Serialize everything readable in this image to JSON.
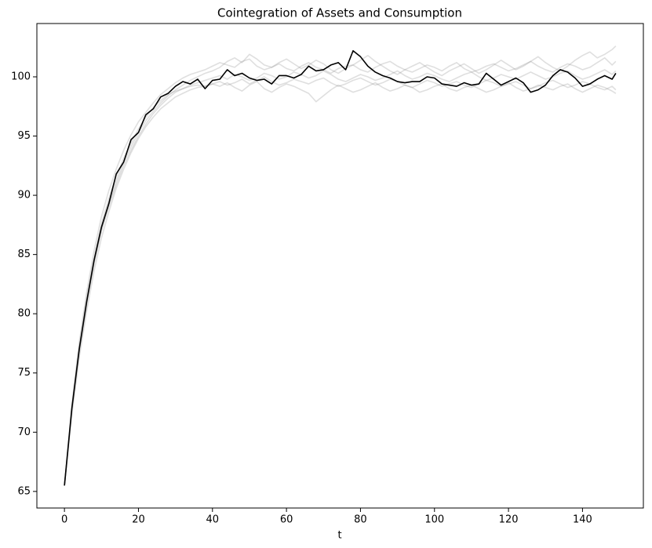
{
  "chart_data": {
    "type": "line",
    "title": "Cointegration of Assets and Consumption",
    "x_label": "t",
    "x": [
      0,
      2,
      4,
      6,
      8,
      10,
      12,
      14,
      16,
      18,
      20,
      22,
      24,
      26,
      28,
      30,
      32,
      34,
      36,
      38,
      40,
      42,
      44,
      46,
      48,
      50,
      52,
      54,
      56,
      58,
      60,
      62,
      64,
      66,
      68,
      70,
      72,
      74,
      76,
      78,
      80,
      82,
      84,
      86,
      88,
      90,
      92,
      94,
      96,
      98,
      100,
      102,
      104,
      106,
      108,
      110,
      112,
      114,
      116,
      118,
      120,
      122,
      124,
      126,
      128,
      130,
      132,
      134,
      136,
      138,
      140,
      142,
      144,
      146,
      148,
      149
    ],
    "xlim": [
      -7.45,
      156.45
    ],
    "xticks": [
      0,
      20,
      40,
      60,
      80,
      100,
      120,
      140
    ],
    "ylim": [
      63.6,
      104.5
    ],
    "yticks": [
      65,
      70,
      75,
      80,
      85,
      90,
      95,
      100
    ],
    "series": [
      {
        "color": "#808080",
        "alpha": 0.25,
        "values": [
          65.5,
          72.3,
          77.6,
          81.8,
          85.3,
          88.2,
          90.4,
          92.2,
          93.8,
          95.1,
          96.2,
          97.0,
          97.8,
          98.5,
          99.0,
          99.5,
          99.9,
          100.2,
          100.4,
          100.6,
          100.9,
          101.2,
          101.0,
          100.8,
          101.3,
          101.5,
          100.9,
          100.6,
          100.8,
          101.1,
          100.7,
          100.5,
          100.9,
          101.2,
          100.8,
          100.6,
          100.3,
          100.7,
          100.9,
          101.0,
          100.6,
          100.4,
          100.8,
          101.1,
          101.3,
          100.9,
          100.6,
          100.4,
          100.7,
          101.0,
          100.8,
          100.5,
          100.9,
          101.2,
          100.7,
          100.4,
          100.6,
          100.9,
          101.1,
          100.8,
          100.5,
          100.7,
          101.0,
          101.3,
          100.9,
          100.6,
          100.4,
          100.8,
          101.1,
          100.9,
          100.6,
          100.8,
          101.2,
          101.6,
          101.0,
          101.3
        ]
      },
      {
        "color": "#808080",
        "alpha": 0.25,
        "values": [
          65.5,
          71.5,
          76.3,
          80.2,
          83.6,
          86.4,
          88.6,
          90.6,
          92.2,
          93.6,
          94.8,
          95.8,
          96.6,
          97.3,
          97.8,
          98.3,
          98.6,
          98.9,
          99.1,
          99.2,
          99.4,
          99.2,
          99.5,
          99.1,
          98.8,
          99.3,
          99.6,
          99.0,
          98.7,
          99.1,
          99.4,
          99.2,
          98.9,
          98.6,
          97.9,
          98.4,
          98.9,
          99.3,
          99.0,
          98.7,
          98.9,
          99.2,
          99.5,
          99.1,
          98.8,
          99.0,
          99.3,
          99.1,
          98.7,
          98.9,
          99.2,
          99.4,
          99.0,
          98.8,
          99.1,
          99.3,
          99.0,
          98.7,
          98.9,
          99.2,
          99.5,
          99.1,
          98.8,
          99.0,
          99.3,
          99.1,
          98.9,
          99.2,
          99.4,
          99.0,
          98.7,
          99.0,
          99.3,
          99.1,
          98.8,
          98.6
        ]
      },
      {
        "color": "#808080",
        "alpha": 0.25,
        "values": [
          65.5,
          71.8,
          76.8,
          80.8,
          84.2,
          87.0,
          89.2,
          91.2,
          92.8,
          94.1,
          95.3,
          96.3,
          97.1,
          97.8,
          98.4,
          98.9,
          99.3,
          99.7,
          100.0,
          100.3,
          100.5,
          100.8,
          101.3,
          101.6,
          101.2,
          101.9,
          101.5,
          101.0,
          100.8,
          101.2,
          101.5,
          101.1,
          100.7,
          101.0,
          101.4,
          101.1,
          100.6,
          100.3,
          100.7,
          101.0,
          101.4,
          101.8,
          101.3,
          100.9,
          100.5,
          100.2,
          100.6,
          100.9,
          101.2,
          100.8,
          100.4,
          100.1,
          100.5,
          100.8,
          101.1,
          100.7,
          100.3,
          100.6,
          101.0,
          101.4,
          101.0,
          100.6,
          100.9,
          101.3,
          101.7,
          101.2,
          100.8,
          100.5,
          100.9,
          101.4,
          101.8,
          102.1,
          101.6,
          101.9,
          102.3,
          102.6
        ]
      },
      {
        "color": "#808080",
        "alpha": 0.25,
        "values": [
          65.5,
          71.9,
          76.9,
          80.9,
          84.3,
          87.1,
          89.0,
          90.9,
          92.5,
          93.8,
          95.0,
          96.0,
          96.9,
          97.6,
          98.2,
          98.7,
          99.0,
          99.3,
          99.5,
          99.7,
          99.9,
          100.1,
          99.8,
          100.2,
          100.0,
          99.7,
          99.9,
          100.3,
          100.1,
          99.8,
          100.0,
          100.4,
          100.2,
          99.9,
          100.1,
          100.5,
          100.2,
          99.8,
          99.6,
          99.9,
          100.2,
          100.0,
          99.7,
          99.9,
          100.2,
          100.5,
          100.1,
          99.8,
          100.0,
          100.3,
          100.1,
          99.8,
          99.6,
          99.9,
          100.2,
          100.4,
          100.0,
          99.7,
          99.9,
          100.2,
          100.0,
          99.8,
          100.1,
          100.4,
          100.1,
          99.8,
          100.0,
          100.3,
          100.5,
          100.1,
          99.8,
          100.0,
          100.3,
          100.6,
          100.2,
          100.5
        ]
      },
      {
        "color": "#808080",
        "alpha": 0.25,
        "values": [
          65.5,
          72.1,
          77.2,
          81.3,
          84.7,
          87.6,
          89.7,
          91.6,
          93.1,
          94.4,
          95.6,
          96.6,
          97.4,
          98.0,
          98.5,
          98.8,
          99.0,
          99.2,
          99.3,
          99.2,
          99.4,
          99.6,
          99.3,
          99.5,
          99.8,
          99.4,
          99.7,
          100.0,
          99.6,
          99.3,
          99.5,
          99.8,
          99.6,
          99.4,
          99.7,
          99.9,
          99.5,
          99.2,
          99.4,
          99.7,
          99.9,
          99.6,
          99.3,
          99.5,
          99.8,
          99.6,
          99.3,
          99.1,
          99.4,
          99.7,
          99.5,
          99.2,
          99.4,
          99.6,
          99.3,
          99.1,
          99.4,
          99.7,
          99.5,
          99.2,
          99.4,
          99.6,
          99.3,
          99.0,
          99.2,
          99.5,
          99.7,
          99.4,
          99.1,
          99.3,
          99.6,
          99.4,
          99.1,
          98.9,
          99.2,
          98.9
        ]
      },
      {
        "color": "#000000",
        "alpha": 1,
        "values": [
          65.5,
          72.0,
          77.0,
          81.0,
          84.5,
          87.3,
          89.3,
          91.8,
          92.8,
          94.7,
          95.3,
          96.8,
          97.3,
          98.3,
          98.6,
          99.2,
          99.6,
          99.4,
          99.8,
          99.0,
          99.7,
          99.8,
          100.6,
          100.1,
          100.3,
          99.9,
          99.7,
          99.8,
          99.4,
          100.1,
          100.1,
          99.9,
          100.2,
          100.9,
          100.5,
          100.6,
          101.0,
          101.2,
          100.6,
          102.2,
          101.7,
          100.9,
          100.4,
          100.1,
          99.9,
          99.6,
          99.5,
          99.6,
          99.6,
          100.0,
          99.9,
          99.4,
          99.3,
          99.2,
          99.5,
          99.3,
          99.4,
          100.3,
          99.8,
          99.3,
          99.6,
          99.9,
          99.5,
          98.7,
          98.9,
          99.3,
          100.1,
          100.6,
          100.4,
          99.9,
          99.2,
          99.4,
          99.8,
          100.1,
          99.8,
          100.3
        ]
      }
    ]
  }
}
